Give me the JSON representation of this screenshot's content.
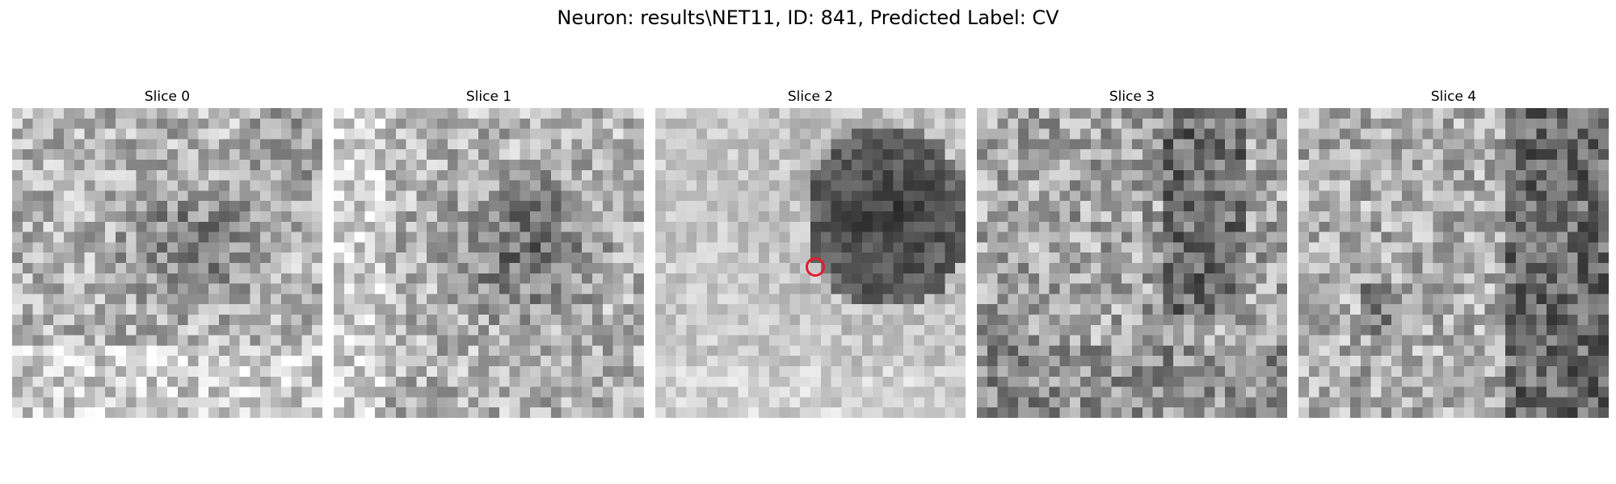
{
  "figure": {
    "title": "Neuron: results\\NET11, ID: 841, Predicted Label: CV"
  },
  "panels": [
    {
      "title": "Slice 0",
      "icon": "grayscale-noise-image"
    },
    {
      "title": "Slice 1",
      "icon": "grayscale-noise-image"
    },
    {
      "title": "Slice 2",
      "icon": "grayscale-noise-image",
      "marker": "red-circle-marker"
    },
    {
      "title": "Slice 3",
      "icon": "grayscale-noise-image"
    },
    {
      "title": "Slice 4",
      "icon": "grayscale-noise-image"
    }
  ],
  "colors": {
    "marker": "#e11d2a"
  }
}
